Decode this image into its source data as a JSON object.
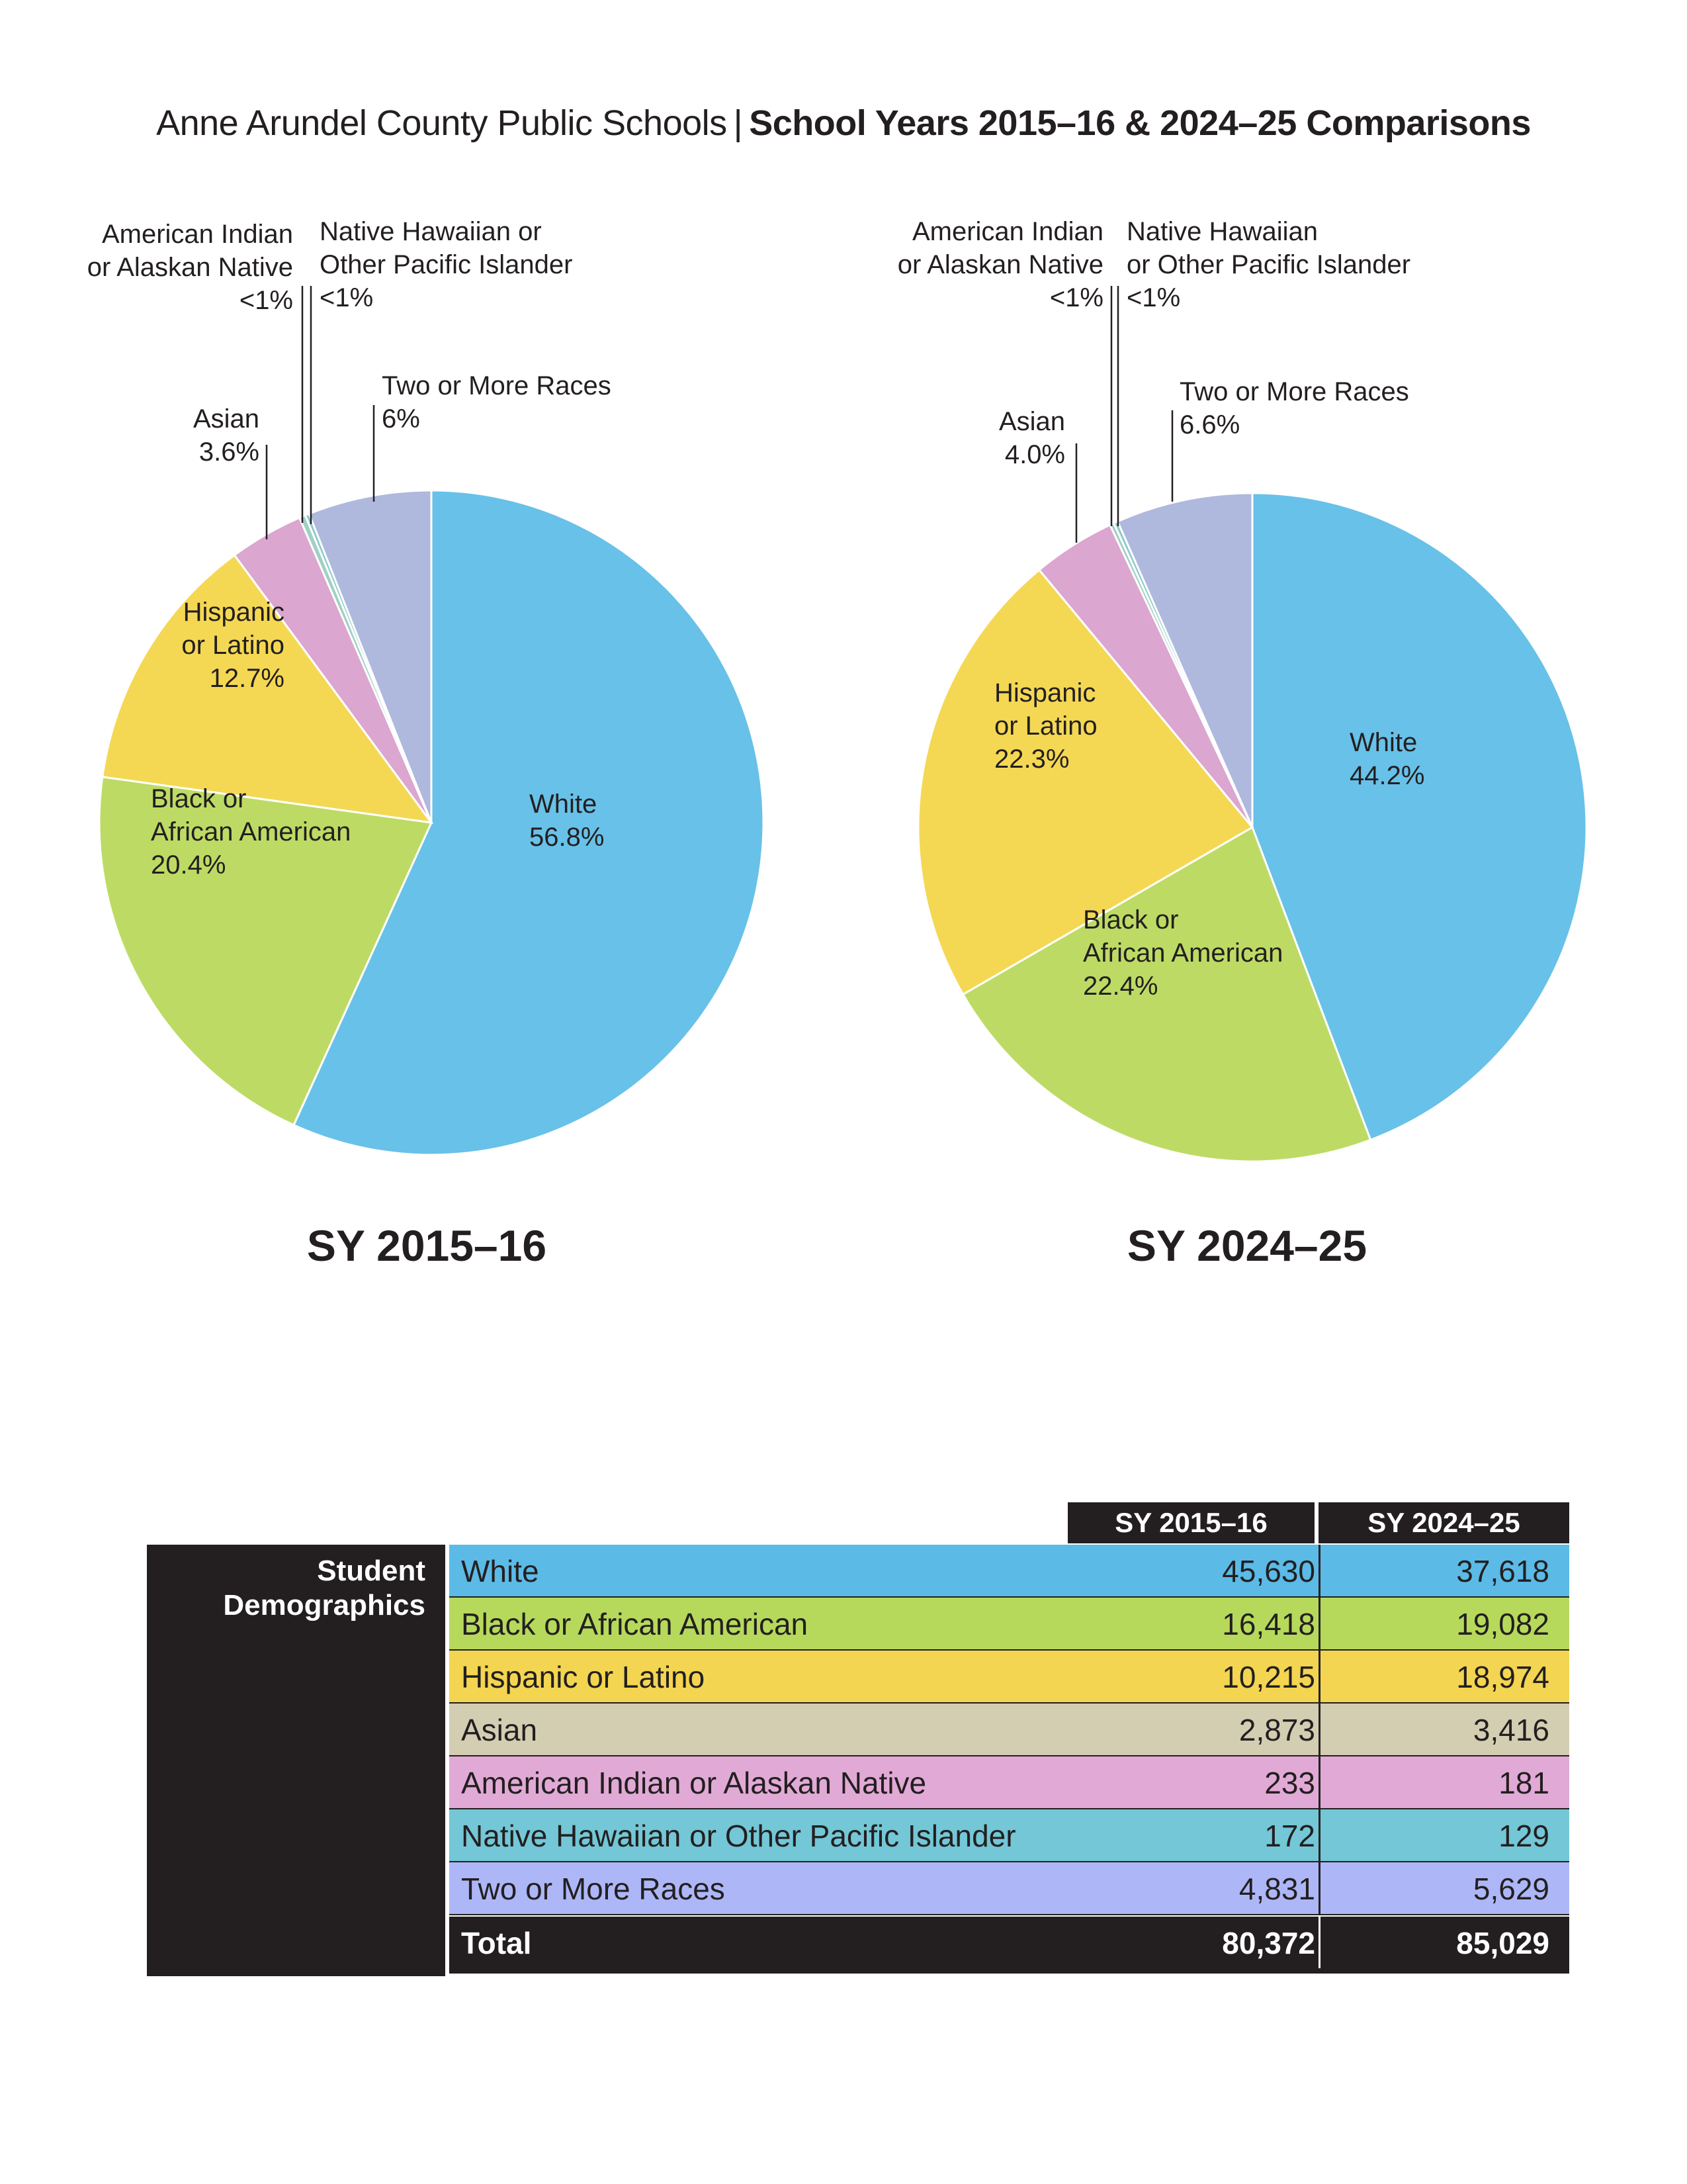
{
  "header": {
    "left": "Anne Arundel County Public Schools",
    "separator": "|",
    "right": "School Years 2015–16 & 2024–25 Comparisons"
  },
  "chart_data": [
    {
      "type": "pie",
      "title": "SY 2015–16",
      "slices": [
        {
          "label": "White",
          "value": 56.8,
          "display": "56.8%",
          "color": "#68c1e8"
        },
        {
          "label": "Black or African American",
          "value": 20.4,
          "display": "20.4%",
          "color": "#bddb64"
        },
        {
          "label": "Hispanic or Latino",
          "value": 12.7,
          "display": "12.7%",
          "color": "#f4d853"
        },
        {
          "label": "Asian",
          "value": 3.6,
          "display": "3.6%",
          "color": "#dba6cf"
        },
        {
          "label": "American Indian or Alaskan Native",
          "value": 0.3,
          "display": "<1%",
          "color": "#9fd0c4"
        },
        {
          "label": "Native Hawaiian or Other Pacific Islander",
          "value": 0.2,
          "display": "<1%",
          "color": "#8ec9c9"
        },
        {
          "label": "Two or More Races",
          "value": 6.0,
          "display": "6%",
          "color": "#afb8dd"
        }
      ]
    },
    {
      "type": "pie",
      "title": "SY 2024–25",
      "slices": [
        {
          "label": "White",
          "value": 44.2,
          "display": "44.2%",
          "color": "#68c1e8"
        },
        {
          "label": "Black or African American",
          "value": 22.4,
          "display": "22.4%",
          "color": "#bddb64"
        },
        {
          "label": "Hispanic or Latino",
          "value": 22.3,
          "display": "22.3%",
          "color": "#f4d853"
        },
        {
          "label": "Asian",
          "value": 4.0,
          "display": "4.0%",
          "color": "#dba6cf"
        },
        {
          "label": "American Indian or Alaskan Native",
          "value": 0.2,
          "display": "<1%",
          "color": "#9fd0c4"
        },
        {
          "label": "Native Hawaiian or Other Pacific Islander",
          "value": 0.2,
          "display": "<1%",
          "color": "#8ec9c9"
        },
        {
          "label": "Two or More Races",
          "value": 6.6,
          "display": "6.6%",
          "color": "#afb8dd"
        }
      ]
    }
  ],
  "table": {
    "side_title_line1": "Student",
    "side_title_line2": "Demographics",
    "columns": [
      "SY 2015–16",
      "SY 2024–25"
    ],
    "rows": [
      {
        "label": "White",
        "v1": "45,630",
        "v2": "37,618",
        "color": "#5bbae6"
      },
      {
        "label": "Black or African American",
        "v1": "16,418",
        "v2": "19,082",
        "color": "#b6d95b"
      },
      {
        "label": "Hispanic or Latino",
        "v1": "10,215",
        "v2": "18,974",
        "color": "#f3d551"
      },
      {
        "label": "Asian",
        "v1": "2,873",
        "v2": "3,416",
        "color": "#d3cdb2"
      },
      {
        "label": "American Indian or Alaskan Native",
        "v1": "233",
        "v2": "181",
        "color": "#e1aad6"
      },
      {
        "label": "Native Hawaiian or Other Pacific Islander",
        "v1": "172",
        "v2": "129",
        "color": "#73c7d6"
      },
      {
        "label": "Two or More Races",
        "v1": "4,831",
        "v2": "5,629",
        "color": "#adb7f7"
      }
    ],
    "total": {
      "label": "Total",
      "v1": "80,372",
      "v2": "85,029"
    }
  }
}
